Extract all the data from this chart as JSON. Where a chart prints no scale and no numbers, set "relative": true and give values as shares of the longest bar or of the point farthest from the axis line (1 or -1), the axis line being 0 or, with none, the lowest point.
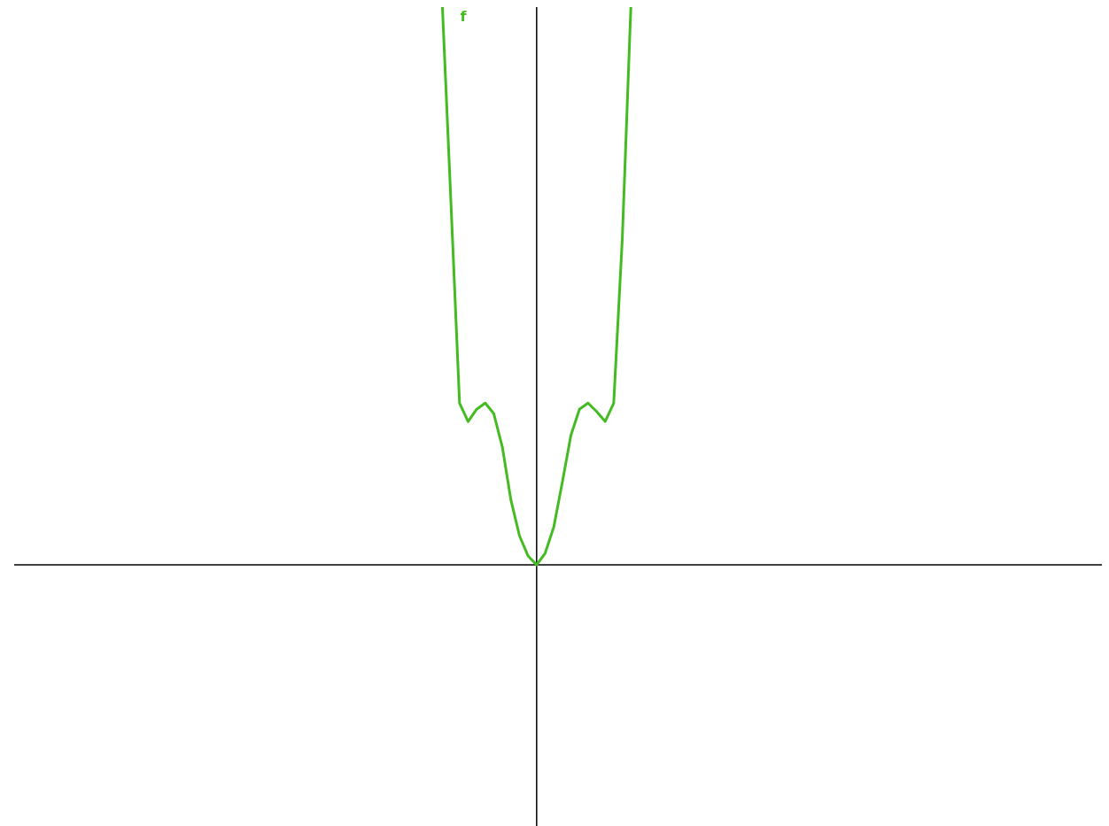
{
  "chart_data": {
    "type": "line",
    "relative": true,
    "categories": [
      null,
      null,
      null,
      null,
      null,
      null,
      null,
      null,
      null,
      null,
      null,
      null,
      null,
      null,
      null,
      null,
      null,
      null,
      null,
      null,
      null,
      null,
      null,
      null,
      null,
      null,
      null,
      null,
      null,
      null,
      null,
      null,
      null,
      null,
      null,
      null,
      null,
      null,
      null,
      null,
      null,
      null,
      null,
      null,
      null,
      null,
      null,
      null,
      null,
      null,
      null,
      null,
      null,
      null,
      null,
      null,
      null,
      null,
      null,
      null,
      null,
      null,
      null,
      null,
      null,
      null,
      null,
      null,
      null,
      null,
      null,
      null,
      null,
      null,
      null,
      null,
      null,
      null,
      null,
      null,
      null,
      null,
      null,
      null,
      null,
      null,
      null,
      null,
      null,
      null,
      null,
      null,
      null,
      null,
      null,
      null,
      null,
      null,
      null,
      null,
      null,
      null,
      null,
      null,
      null,
      null,
      null,
      null,
      null,
      null,
      null,
      null,
      null,
      null,
      null,
      null,
      null,
      null,
      null,
      null,
      null,
      null,
      null,
      null,
      null,
      null,
      null,
      null
    ],
    "series": [
      {
        "name": "f",
        "color": "#44bb22",
        "values": [
          null,
          null,
          null,
          null,
          null,
          null,
          null,
          null,
          null,
          null,
          null,
          null,
          null,
          null,
          null,
          null,
          null,
          null,
          null,
          null,
          null,
          null,
          null,
          null,
          null,
          null,
          null,
          null,
          null,
          null,
          null,
          null,
          null,
          null,
          null,
          null,
          null,
          null,
          null,
          null,
          null,
          null,
          null,
          null,
          null,
          null,
          null,
          null,
          null,
          null,
          1,
          0.648,
          0.29,
          0.257,
          0.279,
          0.29,
          0.271,
          0.211,
          0.116,
          0.052,
          0.016,
          0,
          0.021,
          0.068,
          0.148,
          0.232,
          0.279,
          0.29,
          0.275,
          0.257,
          0.29,
          0.584,
          1,
          null,
          null,
          null,
          null,
          null,
          null,
          null,
          null,
          null,
          null,
          null,
          null,
          null,
          null,
          null,
          null,
          null,
          null,
          null,
          null,
          null,
          null,
          null,
          null,
          null,
          null,
          null,
          null,
          null,
          null,
          null,
          null,
          null,
          null,
          null,
          null,
          null,
          null,
          null,
          null,
          null,
          null,
          null,
          null,
          null,
          null,
          null,
          null,
          null,
          null,
          null,
          null,
          null,
          null,
          null
        ]
      }
    ]
  }
}
